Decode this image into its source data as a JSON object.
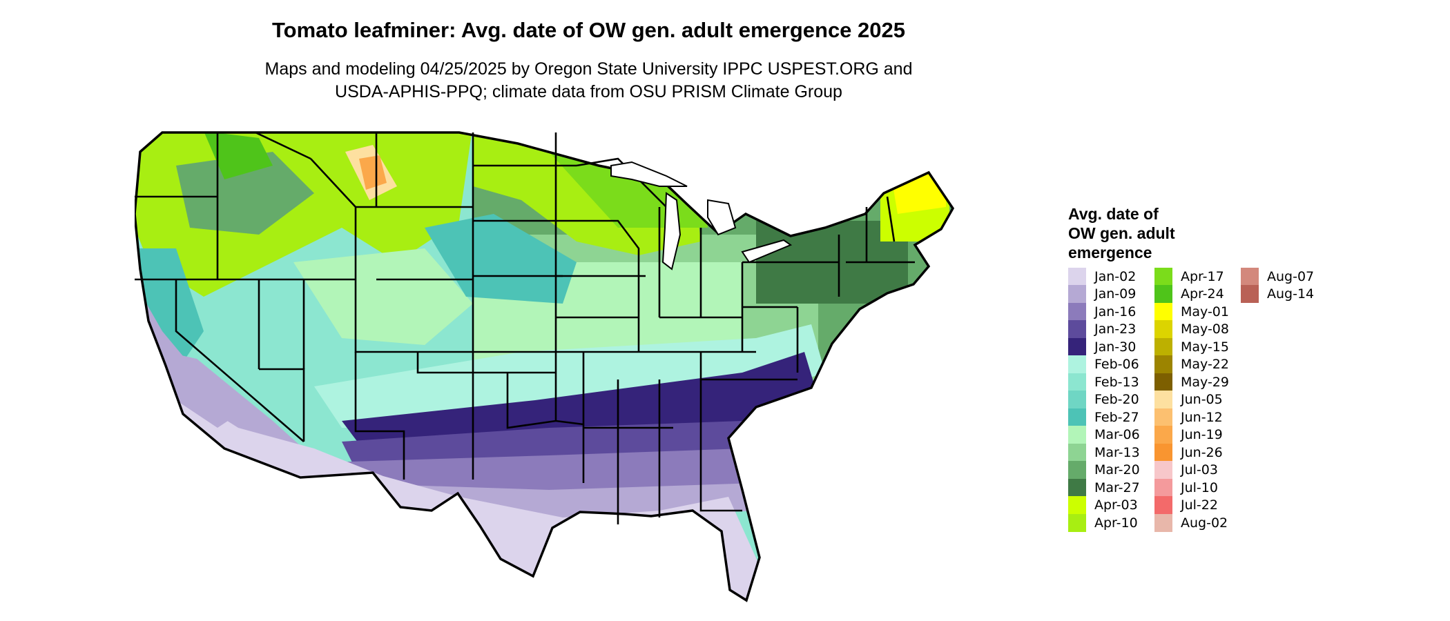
{
  "title": "Tomato leafminer: Avg. date of OW gen. adult emergence 2025",
  "subtitle_lines": [
    "Maps and modeling 04/25/2025 by Oregon State University IPPC USPEST.ORG and",
    "USDA-APHIS-PPQ; climate data from OSU PRISM Climate Group"
  ],
  "legend": {
    "title_lines": [
      "Avg. date of",
      "OW gen. adult",
      "emergence"
    ],
    "items": [
      {
        "label": "Jan-02",
        "color": "#dcd4ec"
      },
      {
        "label": "Jan-09",
        "color": "#b5a9d4"
      },
      {
        "label": "Jan-16",
        "color": "#8c7bbb"
      },
      {
        "label": "Jan-23",
        "color": "#5d4b9c"
      },
      {
        "label": "Jan-30",
        "color": "#35237a"
      },
      {
        "label": "Feb-06",
        "color": "#aef3e0"
      },
      {
        "label": "Feb-13",
        "color": "#8ce6d0"
      },
      {
        "label": "Feb-20",
        "color": "#6fd6c4"
      },
      {
        "label": "Feb-27",
        "color": "#4dc3b6"
      },
      {
        "label": "Mar-06",
        "color": "#b2f5b8"
      },
      {
        "label": "Mar-13",
        "color": "#8ed493"
      },
      {
        "label": "Mar-20",
        "color": "#65ab6a"
      },
      {
        "label": "Mar-27",
        "color": "#3f7a45"
      },
      {
        "label": "Apr-03",
        "color": "#ccff00"
      },
      {
        "label": "Apr-10",
        "color": "#a8ee12"
      },
      {
        "label": "Apr-17",
        "color": "#7bdc1b"
      },
      {
        "label": "Apr-24",
        "color": "#4fc41a"
      },
      {
        "label": "May-01",
        "color": "#ffff00"
      },
      {
        "label": "May-08",
        "color": "#dcd400"
      },
      {
        "label": "May-15",
        "color": "#bdb000"
      },
      {
        "label": "May-22",
        "color": "#9c8400"
      },
      {
        "label": "May-29",
        "color": "#7d5f00"
      },
      {
        "label": "Jun-05",
        "color": "#fde0a0"
      },
      {
        "label": "Jun-12",
        "color": "#fcc070"
      },
      {
        "label": "Jun-19",
        "color": "#fba84a"
      },
      {
        "label": "Jun-26",
        "color": "#f99530"
      },
      {
        "label": "Jul-03",
        "color": "#f7c7ca"
      },
      {
        "label": "Jul-10",
        "color": "#f49a9c"
      },
      {
        "label": "Jul-22",
        "color": "#f36a6a"
      },
      {
        "label": "Aug-02",
        "color": "#e8b7aa"
      },
      {
        "label": "Aug-07",
        "color": "#d3887c"
      },
      {
        "label": "Aug-14",
        "color": "#b96156"
      }
    ]
  }
}
